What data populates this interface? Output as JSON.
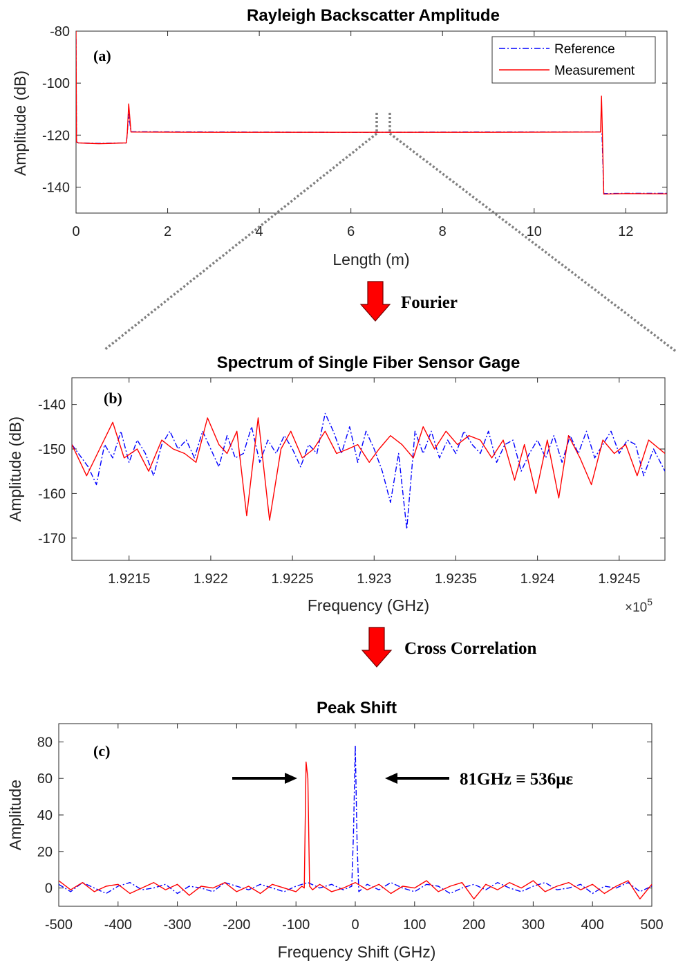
{
  "colors": {
    "reference": "#0000ff",
    "measurement": "#ff0000",
    "arrow_fill": "#ff0000",
    "zoom_line": "#808080"
  },
  "step_arrows": [
    {
      "label": "Fourier"
    },
    {
      "label": "Cross Correlation"
    }
  ],
  "chart_data": [
    {
      "type": "line",
      "panel_label": "(a)",
      "title": "Rayleigh Backscatter Amplitude",
      "xlabel": "Length (m)",
      "ylabel": "Amplitude (dB)",
      "xlim": [
        0,
        12.9
      ],
      "ylim": [
        -150,
        -80
      ],
      "xticks": [
        0,
        2,
        4,
        6,
        8,
        10,
        12
      ],
      "xtick_labels": [
        "0",
        "2",
        "4",
        "6",
        "8",
        "10",
        "12"
      ],
      "yticks": [
        -80,
        -100,
        -120,
        -140
      ],
      "ytick_labels": [
        "-80",
        "-100",
        "-120",
        "-140"
      ],
      "legend": {
        "placement": "top-right",
        "entries": [
          "Reference",
          "Measurement"
        ]
      },
      "zoom_region": [
        6.62,
        6.88
      ],
      "series": [
        {
          "name": "Reference",
          "style": "dashdot",
          "x": [
            0,
            0.01,
            0.05,
            0.5,
            1.1,
            1.12,
            1.15,
            1.2,
            3,
            6,
            9,
            11.45,
            11.48,
            11.52,
            12,
            12.9
          ],
          "y": [
            -83,
            -122.5,
            -123,
            -123.2,
            -123,
            -119,
            -112,
            -118.7,
            -118.8,
            -118.9,
            -118.8,
            -118.8,
            -119,
            -142.5,
            -142.4,
            -142.4
          ]
        },
        {
          "name": "Measurement",
          "style": "solid",
          "x": [
            0,
            0.01,
            0.05,
            0.5,
            1.1,
            1.12,
            1.15,
            1.2,
            3,
            6,
            9,
            11.45,
            11.47,
            11.49,
            11.52,
            12,
            12.9
          ],
          "y": [
            -80,
            -122.7,
            -123,
            -123.3,
            -123,
            -119,
            -108,
            -118.8,
            -118.9,
            -118.9,
            -118.9,
            -118.8,
            -105,
            -119,
            -142.7,
            -142.5,
            -142.6
          ]
        }
      ]
    },
    {
      "type": "line",
      "panel_label": "(b)",
      "title": "Spectrum of Single Fiber Sensor Gage",
      "xlabel": "Frequency (GHz)",
      "ylabel": "Amplitude (dB)",
      "x_multiplier_label": "×10",
      "x_multiplier_exp": "5",
      "xlim": [
        1.92115,
        1.92478
      ],
      "ylim": [
        -175,
        -134
      ],
      "xticks": [
        1.9215,
        1.922,
        1.9225,
        1.923,
        1.9235,
        1.924,
        1.9245
      ],
      "xtick_labels": [
        "1.9215",
        "1.922",
        "1.9225",
        "1.923",
        "1.9235",
        "1.924",
        "1.9245"
      ],
      "yticks": [
        -140,
        -150,
        -160,
        -170
      ],
      "ytick_labels": [
        "-140",
        "-150",
        "-160",
        "-170"
      ],
      "series": [
        {
          "name": "Reference",
          "style": "dashdot",
          "x": [
            1.92115,
            1.92125,
            1.9213,
            1.92135,
            1.9214,
            1.92145,
            1.9215,
            1.92155,
            1.9216,
            1.92165,
            1.9217,
            1.92175,
            1.9218,
            1.92185,
            1.9219,
            1.92195,
            1.922,
            1.92205,
            1.9221,
            1.92215,
            1.9222,
            1.92225,
            1.9223,
            1.92235,
            1.9224,
            1.92245,
            1.9225,
            1.92255,
            1.9226,
            1.92265,
            1.9227,
            1.92275,
            1.9228,
            1.92285,
            1.9229,
            1.92295,
            1.923,
            1.92305,
            1.9231,
            1.92315,
            1.9232,
            1.92325,
            1.9233,
            1.92335,
            1.9234,
            1.92345,
            1.9235,
            1.92355,
            1.9236,
            1.92365,
            1.9237,
            1.92375,
            1.9238,
            1.92385,
            1.9239,
            1.92395,
            1.924,
            1.92405,
            1.9241,
            1.92415,
            1.9242,
            1.92425,
            1.9243,
            1.92435,
            1.9244,
            1.92445,
            1.9245,
            1.92455,
            1.9246,
            1.92465,
            1.92471,
            1.92478
          ],
          "y": [
            -149,
            -154,
            -158,
            -149,
            -152,
            -146,
            -153,
            -148,
            -151,
            -156,
            -149,
            -146,
            -150,
            -148,
            -152,
            -146,
            -150,
            -154,
            -147,
            -152,
            -151,
            -145,
            -153,
            -148,
            -151,
            -147,
            -150,
            -154,
            -149,
            -151,
            -142,
            -146,
            -151,
            -145,
            -153,
            -146,
            -150,
            -155,
            -162,
            -151,
            -168,
            -146,
            -151,
            -146,
            -152,
            -148,
            -151,
            -146,
            -149,
            -151,
            -146,
            -153,
            -149,
            -148,
            -155,
            -151,
            -148,
            -152,
            -147,
            -153,
            -147,
            -151,
            -146,
            -152,
            -149,
            -146,
            -151,
            -148,
            -149,
            -156,
            -150,
            -155
          ]
        },
        {
          "name": "Measurement",
          "style": "solid",
          "x": [
            1.92115,
            1.92124,
            1.92132,
            1.9214,
            1.92147,
            1.92155,
            1.92162,
            1.9217,
            1.92177,
            1.92184,
            1.92191,
            1.92198,
            1.92205,
            1.9221,
            1.92216,
            1.92222,
            1.92229,
            1.92236,
            1.92243,
            1.92249,
            1.92256,
            1.92263,
            1.9227,
            1.92277,
            1.92284,
            1.9229,
            1.92297,
            1.92303,
            1.9231,
            1.92317,
            1.92324,
            1.9233,
            1.92337,
            1.92344,
            1.92351,
            1.92358,
            1.92365,
            1.92372,
            1.92379,
            1.92386,
            1.92392,
            1.92399,
            1.92406,
            1.92413,
            1.92419,
            1.92426,
            1.92433,
            1.9244,
            1.92447,
            1.92454,
            1.92461,
            1.92468,
            1.92478
          ],
          "y": [
            -149,
            -156,
            -150,
            -144,
            -152,
            -150,
            -155,
            -148,
            -150,
            -151,
            -153,
            -143,
            -149,
            -151,
            -146,
            -165,
            -143,
            -166,
            -150,
            -146,
            -152,
            -150,
            -146,
            -151,
            -150,
            -149,
            -153,
            -150,
            -147,
            -149,
            -152,
            -145,
            -150,
            -146,
            -149,
            -147,
            -148,
            -152,
            -148,
            -157,
            -149,
            -160,
            -148,
            -161,
            -147,
            -152,
            -158,
            -148,
            -151,
            -149,
            -156,
            -148,
            -151
          ]
        }
      ]
    },
    {
      "type": "line",
      "panel_label": "(c)",
      "title": "Peak Shift",
      "xlabel": "Frequency Shift (GHz)",
      "ylabel": "Amplitude",
      "annotation": "81GHz ≡ 536με",
      "xlim": [
        -500,
        500
      ],
      "ylim": [
        -10,
        90
      ],
      "xticks": [
        -500,
        -400,
        -300,
        -200,
        -100,
        0,
        100,
        200,
        300,
        400,
        500
      ],
      "xtick_labels": [
        "-500",
        "-400",
        "-300",
        "-200",
        "-100",
        "0",
        "100",
        "200",
        "300",
        "400",
        "500"
      ],
      "yticks": [
        0,
        20,
        40,
        60,
        80
      ],
      "ytick_labels": [
        "0",
        "20",
        "40",
        "60",
        "80"
      ],
      "series": [
        {
          "name": "Reference",
          "style": "dashdot",
          "x": [
            -500,
            -480,
            -460,
            -440,
            -420,
            -400,
            -380,
            -360,
            -340,
            -320,
            -300,
            -280,
            -260,
            -240,
            -220,
            -200,
            -180,
            -160,
            -140,
            -120,
            -100,
            -80,
            -60,
            -40,
            -20,
            -6,
            -3,
            0,
            3,
            6,
            20,
            40,
            60,
            80,
            100,
            120,
            140,
            160,
            180,
            200,
            220,
            240,
            260,
            280,
            300,
            320,
            340,
            360,
            380,
            400,
            420,
            440,
            460,
            480,
            500
          ],
          "y": [
            2,
            -2,
            3,
            0,
            -3,
            1,
            3,
            -1,
            0,
            2,
            -3,
            1,
            0,
            -2,
            3,
            1,
            -1,
            2,
            0,
            -2,
            1,
            3,
            0,
            2,
            -1,
            1,
            30,
            78,
            25,
            -2,
            2,
            -1,
            3,
            0,
            -2,
            2,
            1,
            -3,
            0,
            2,
            -1,
            3,
            0,
            -2,
            1,
            3,
            -1,
            0,
            2,
            -3,
            1,
            0,
            3,
            -2,
            1
          ]
        },
        {
          "name": "Measurement",
          "style": "solid",
          "x": [
            -500,
            -480,
            -460,
            -440,
            -420,
            -400,
            -380,
            -360,
            -340,
            -320,
            -300,
            -280,
            -260,
            -240,
            -220,
            -200,
            -180,
            -160,
            -140,
            -120,
            -100,
            -90,
            -86,
            -83,
            -80,
            -77,
            -72,
            -60,
            -40,
            -20,
            0,
            20,
            40,
            60,
            80,
            100,
            120,
            140,
            160,
            180,
            200,
            220,
            240,
            260,
            280,
            300,
            320,
            340,
            360,
            380,
            400,
            420,
            440,
            460,
            480,
            500
          ],
          "y": [
            4,
            -1,
            3,
            -2,
            1,
            2,
            -3,
            0,
            3,
            -1,
            2,
            -4,
            1,
            0,
            3,
            -2,
            1,
            -3,
            2,
            0,
            -2,
            1,
            0,
            69,
            60,
            1,
            -1,
            2,
            -2,
            0,
            3,
            -1,
            2,
            -3,
            1,
            0,
            4,
            -2,
            1,
            3,
            -6,
            2,
            -1,
            3,
            0,
            4,
            -2,
            1,
            3,
            -1,
            2,
            -3,
            1,
            4,
            -6,
            2
          ]
        }
      ]
    }
  ]
}
